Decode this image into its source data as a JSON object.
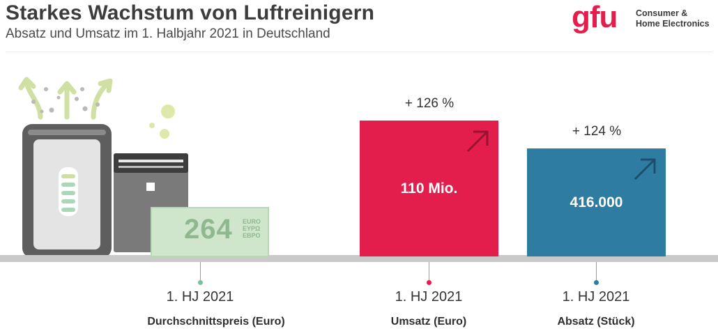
{
  "header": {
    "title": "Starkes Wachstum von Luftreinigern",
    "subtitle": "Absatz und Umsatz im 1. Halbjahr 2021 in Deutschland"
  },
  "logo": {
    "mark": "gfu",
    "line1": "Consumer &",
    "line2": "Home Electronics"
  },
  "colors": {
    "umsatz": "#e31e4c",
    "absatz": "#2f7ca3",
    "price": "#7fbf9c",
    "baseline": "#c9c9c9"
  },
  "illustration": {
    "icon": "air-purifier-icon",
    "banknote": {
      "value": "264",
      "words": [
        "EURO",
        "ΕΥΡΩ",
        "EBPO"
      ]
    }
  },
  "chart_data": {
    "type": "bar",
    "categories": [
      "Durchschnittspreis (Euro)",
      "Umsatz (Euro)",
      "Absatz (Stück)"
    ],
    "period_labels": [
      "1. HJ 2021",
      "1. HJ 2021",
      "1. HJ 2021"
    ],
    "values": [
      264,
      110000000,
      416000
    ],
    "value_labels": [
      "264",
      "110 Mio.",
      "416.000"
    ],
    "change_labels": [
      "",
      "+ 126 %",
      "+ 124 %"
    ],
    "changes_percent": [
      null,
      126,
      124
    ],
    "title": "Starkes Wachstum von Luftreinigern",
    "subtitle": "Absatz und Umsatz im 1. Halbjahr 2021 in Deutschland",
    "xlabel": "",
    "ylabel": "",
    "grid": false,
    "legend": "none"
  }
}
